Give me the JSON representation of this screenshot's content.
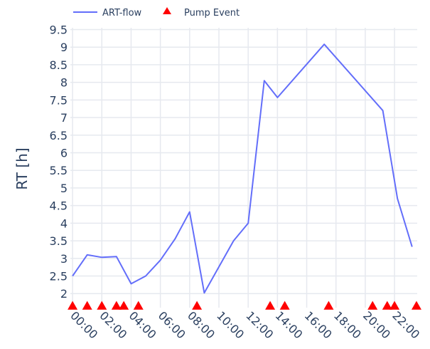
{
  "chart_data": {
    "type": "line",
    "ylabel": "RT [h]",
    "xlabel": "",
    "xlim_hours": [
      -0.15,
      23.55
    ],
    "ylim": [
      1.6,
      9.55
    ],
    "yticks": [
      2,
      2.5,
      3,
      3.5,
      4,
      4.5,
      5,
      5.5,
      6,
      6.5,
      7,
      7.5,
      8,
      8.5,
      9,
      9.5
    ],
    "ytick_labels": [
      "2",
      "2.5",
      "3",
      "3.5",
      "4",
      "4.5",
      "5",
      "5.5",
      "6",
      "6.5",
      "7",
      "7.5",
      "8",
      "8.5",
      "9",
      "9.5"
    ],
    "xticks_hours": [
      0,
      2,
      4,
      6,
      8,
      10,
      12,
      14,
      16,
      18,
      20,
      22
    ],
    "xtick_labels": [
      "00:00",
      "02:00",
      "04:00",
      "06:00",
      "08:00",
      "10:00",
      "12:00",
      "14:00",
      "16:00",
      "18:00",
      "20:00",
      "22:00"
    ],
    "grid": true,
    "legend_position": "top-left, horizontal",
    "series": [
      {
        "name": "ART-flow",
        "mode": "line",
        "color": "#636efa",
        "x_hours": [
          0,
          1,
          2,
          3,
          4,
          5,
          6,
          7,
          8,
          9,
          11,
          12,
          13.1,
          14,
          17.2,
          21.2,
          22.2,
          23.2
        ],
        "y": [
          2.5,
          3.1,
          3.03,
          3.05,
          2.28,
          2.5,
          2.95,
          3.55,
          4.32,
          2.02,
          3.5,
          4.0,
          8.05,
          7.57,
          9.08,
          7.2,
          4.7,
          3.33
        ]
      },
      {
        "name": "Pump Event",
        "mode": "markers",
        "marker": "triangle-up",
        "color": "#ff0000",
        "x_hours": [
          0,
          1,
          2,
          3,
          3.5,
          4.5,
          8.5,
          13.5,
          14.5,
          17.5,
          20.5,
          21.5,
          22,
          23.5
        ],
        "y": [
          1.65,
          1.65,
          1.65,
          1.65,
          1.65,
          1.65,
          1.65,
          1.65,
          1.65,
          1.65,
          1.65,
          1.65,
          1.65,
          1.65
        ]
      }
    ]
  }
}
